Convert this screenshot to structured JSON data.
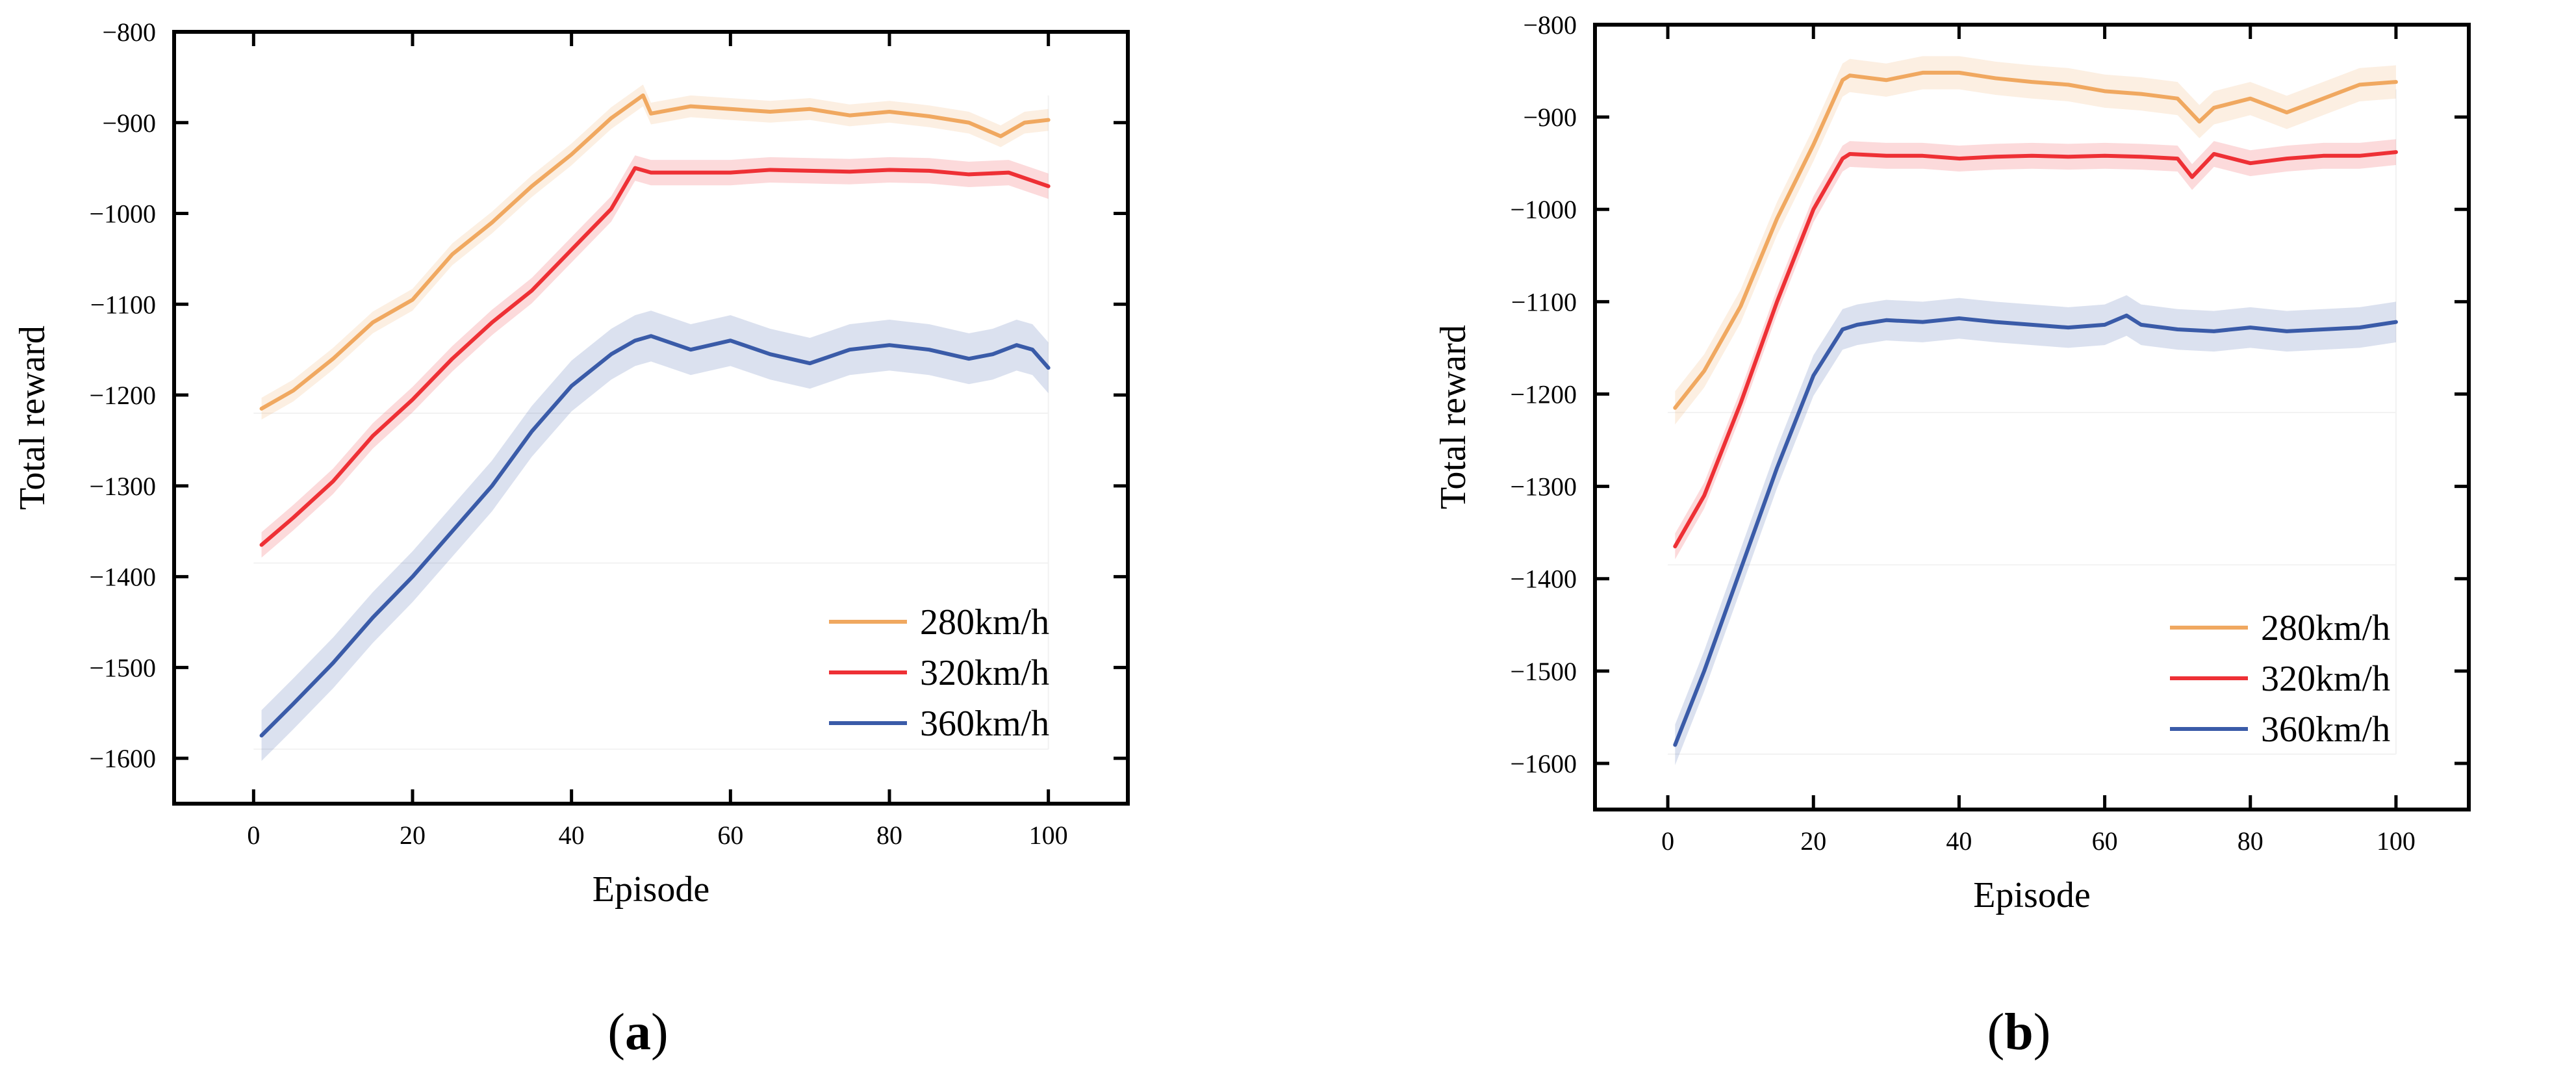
{
  "chart_data": [
    {
      "type": "line",
      "panel_label": "a",
      "xlabel": "Episode",
      "ylabel": "Total reward",
      "xlim": [
        -10,
        110
      ],
      "ylim": [
        -1650,
        -800
      ],
      "xticks": [
        0,
        20,
        40,
        60,
        80,
        100
      ],
      "yticks": [
        -800,
        -900,
        -1000,
        -1100,
        -1200,
        -1300,
        -1400,
        -1500,
        -1600
      ],
      "legend_position": "bottom-right",
      "series": [
        {
          "name": "280km/h",
          "color": "#F0A860",
          "band": 12,
          "x": [
            1,
            5,
            10,
            15,
            20,
            25,
            30,
            35,
            40,
            45,
            49,
            50,
            55,
            60,
            65,
            70,
            75,
            80,
            85,
            90,
            94,
            97,
            100
          ],
          "y": [
            -1215,
            -1195,
            -1160,
            -1120,
            -1095,
            -1045,
            -1010,
            -970,
            -935,
            -895,
            -870,
            -890,
            -882,
            -885,
            -888,
            -885,
            -892,
            -888,
            -893,
            -900,
            -915,
            -900,
            -897
          ]
        },
        {
          "name": "320km/h",
          "color": "#EE3035",
          "band": 14,
          "x": [
            1,
            5,
            10,
            15,
            20,
            25,
            30,
            35,
            40,
            45,
            48,
            50,
            55,
            60,
            65,
            70,
            75,
            80,
            85,
            90,
            95,
            100
          ],
          "y": [
            -1365,
            -1335,
            -1295,
            -1245,
            -1205,
            -1160,
            -1120,
            -1085,
            -1040,
            -995,
            -950,
            -955,
            -955,
            -955,
            -952,
            -953,
            -954,
            -952,
            -953,
            -957,
            -955,
            -970
          ]
        },
        {
          "name": "360km/h",
          "color": "#3A5BA8",
          "band": 28,
          "x": [
            1,
            5,
            10,
            15,
            20,
            25,
            30,
            35,
            40,
            45,
            48,
            50,
            55,
            60,
            65,
            70,
            75,
            80,
            85,
            90,
            93,
            96,
            98,
            100
          ],
          "y": [
            -1575,
            -1540,
            -1495,
            -1445,
            -1400,
            -1350,
            -1300,
            -1240,
            -1190,
            -1155,
            -1140,
            -1135,
            -1150,
            -1140,
            -1155,
            -1165,
            -1150,
            -1145,
            -1150,
            -1160,
            -1155,
            -1145,
            -1150,
            -1170
          ]
        }
      ]
    },
    {
      "type": "line",
      "panel_label": "b",
      "xlabel": "Episode",
      "ylabel": "Total reward",
      "xlim": [
        -10,
        110
      ],
      "ylim": [
        -1650,
        -800
      ],
      "xticks": [
        0,
        20,
        40,
        60,
        80,
        100
      ],
      "yticks": [
        -800,
        -900,
        -1000,
        -1100,
        -1200,
        -1300,
        -1400,
        -1500,
        -1600
      ],
      "legend_position": "bottom-right",
      "series": [
        {
          "name": "280km/h",
          "color": "#F0A860",
          "band": 18,
          "x": [
            1,
            5,
            10,
            15,
            20,
            24,
            25,
            30,
            35,
            40,
            45,
            50,
            55,
            60,
            65,
            70,
            73,
            75,
            80,
            85,
            90,
            95,
            100
          ],
          "y": [
            -1215,
            -1175,
            -1105,
            -1010,
            -930,
            -860,
            -855,
            -860,
            -852,
            -852,
            -858,
            -862,
            -865,
            -872,
            -875,
            -880,
            -905,
            -890,
            -880,
            -895,
            -880,
            -865,
            -862
          ]
        },
        {
          "name": "320km/h",
          "color": "#EE3035",
          "band": 14,
          "x": [
            1,
            5,
            10,
            15,
            20,
            24,
            25,
            30,
            35,
            40,
            45,
            50,
            55,
            60,
            65,
            70,
            72,
            75,
            80,
            85,
            90,
            95,
            100
          ],
          "y": [
            -1365,
            -1310,
            -1210,
            -1100,
            -1000,
            -945,
            -940,
            -942,
            -942,
            -945,
            -943,
            -942,
            -943,
            -942,
            -943,
            -945,
            -965,
            -940,
            -950,
            -945,
            -942,
            -942,
            -938
          ]
        },
        {
          "name": "360km/h",
          "color": "#3A5BA8",
          "band": 22,
          "x": [
            1,
            5,
            10,
            15,
            20,
            24,
            26,
            30,
            35,
            40,
            45,
            50,
            55,
            60,
            63,
            65,
            70,
            75,
            80,
            85,
            90,
            95,
            100
          ],
          "y": [
            -1580,
            -1500,
            -1390,
            -1280,
            -1180,
            -1130,
            -1125,
            -1120,
            -1122,
            -1118,
            -1122,
            -1125,
            -1128,
            -1125,
            -1115,
            -1125,
            -1130,
            -1132,
            -1128,
            -1132,
            -1130,
            -1128,
            -1122
          ]
        }
      ]
    }
  ]
}
